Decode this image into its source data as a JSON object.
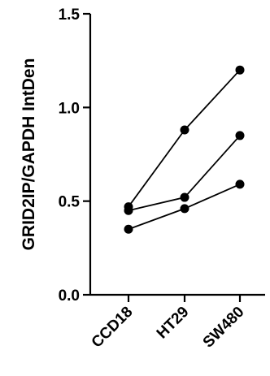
{
  "chart_data": {
    "type": "line",
    "title": "",
    "xlabel": "",
    "ylabel": "GRID2IP/GAPDH IntDen",
    "categories": [
      "CCD18",
      "HT29",
      "SW480"
    ],
    "series": [
      {
        "values": [
          0.47,
          0.88,
          1.2
        ]
      },
      {
        "values": [
          0.45,
          0.52,
          0.85
        ]
      },
      {
        "values": [
          0.35,
          0.46,
          0.59
        ]
      }
    ],
    "ylim": [
      0.0,
      1.5
    ],
    "yticks": [
      "0.0",
      "0.5",
      "1.0",
      "1.5"
    ],
    "grid": false,
    "legend": "none",
    "colors": {
      "line": "#000000",
      "marker": "#000000"
    }
  }
}
